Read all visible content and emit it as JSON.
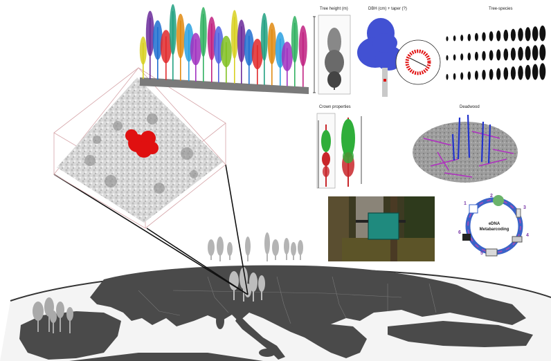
{
  "panels": {
    "tree_height": {
      "label": "Tree height (m)"
    },
    "dbh": {
      "label": "DBH (cm) + taper (?)"
    },
    "species": {
      "label": "Tree-species"
    },
    "crown": {
      "label": "Crown properties"
    },
    "deadwood": {
      "label": "Deadwood"
    },
    "edna": {
      "title_line1": "eDNA",
      "title_line2": "Metabarcoding",
      "steps": [
        "1",
        "2",
        "3",
        "4",
        "5",
        "6"
      ]
    }
  },
  "colors": {
    "plot_highlight": "#e01010",
    "stem_blue": "#2233cc",
    "deadwood_magenta": "#b030c0",
    "crown_green": "#2fae3a",
    "crown_red": "#c8262a",
    "land": "#4a4a4a",
    "sea": "#ffffff",
    "edna_ring": "#3a63c8"
  }
}
